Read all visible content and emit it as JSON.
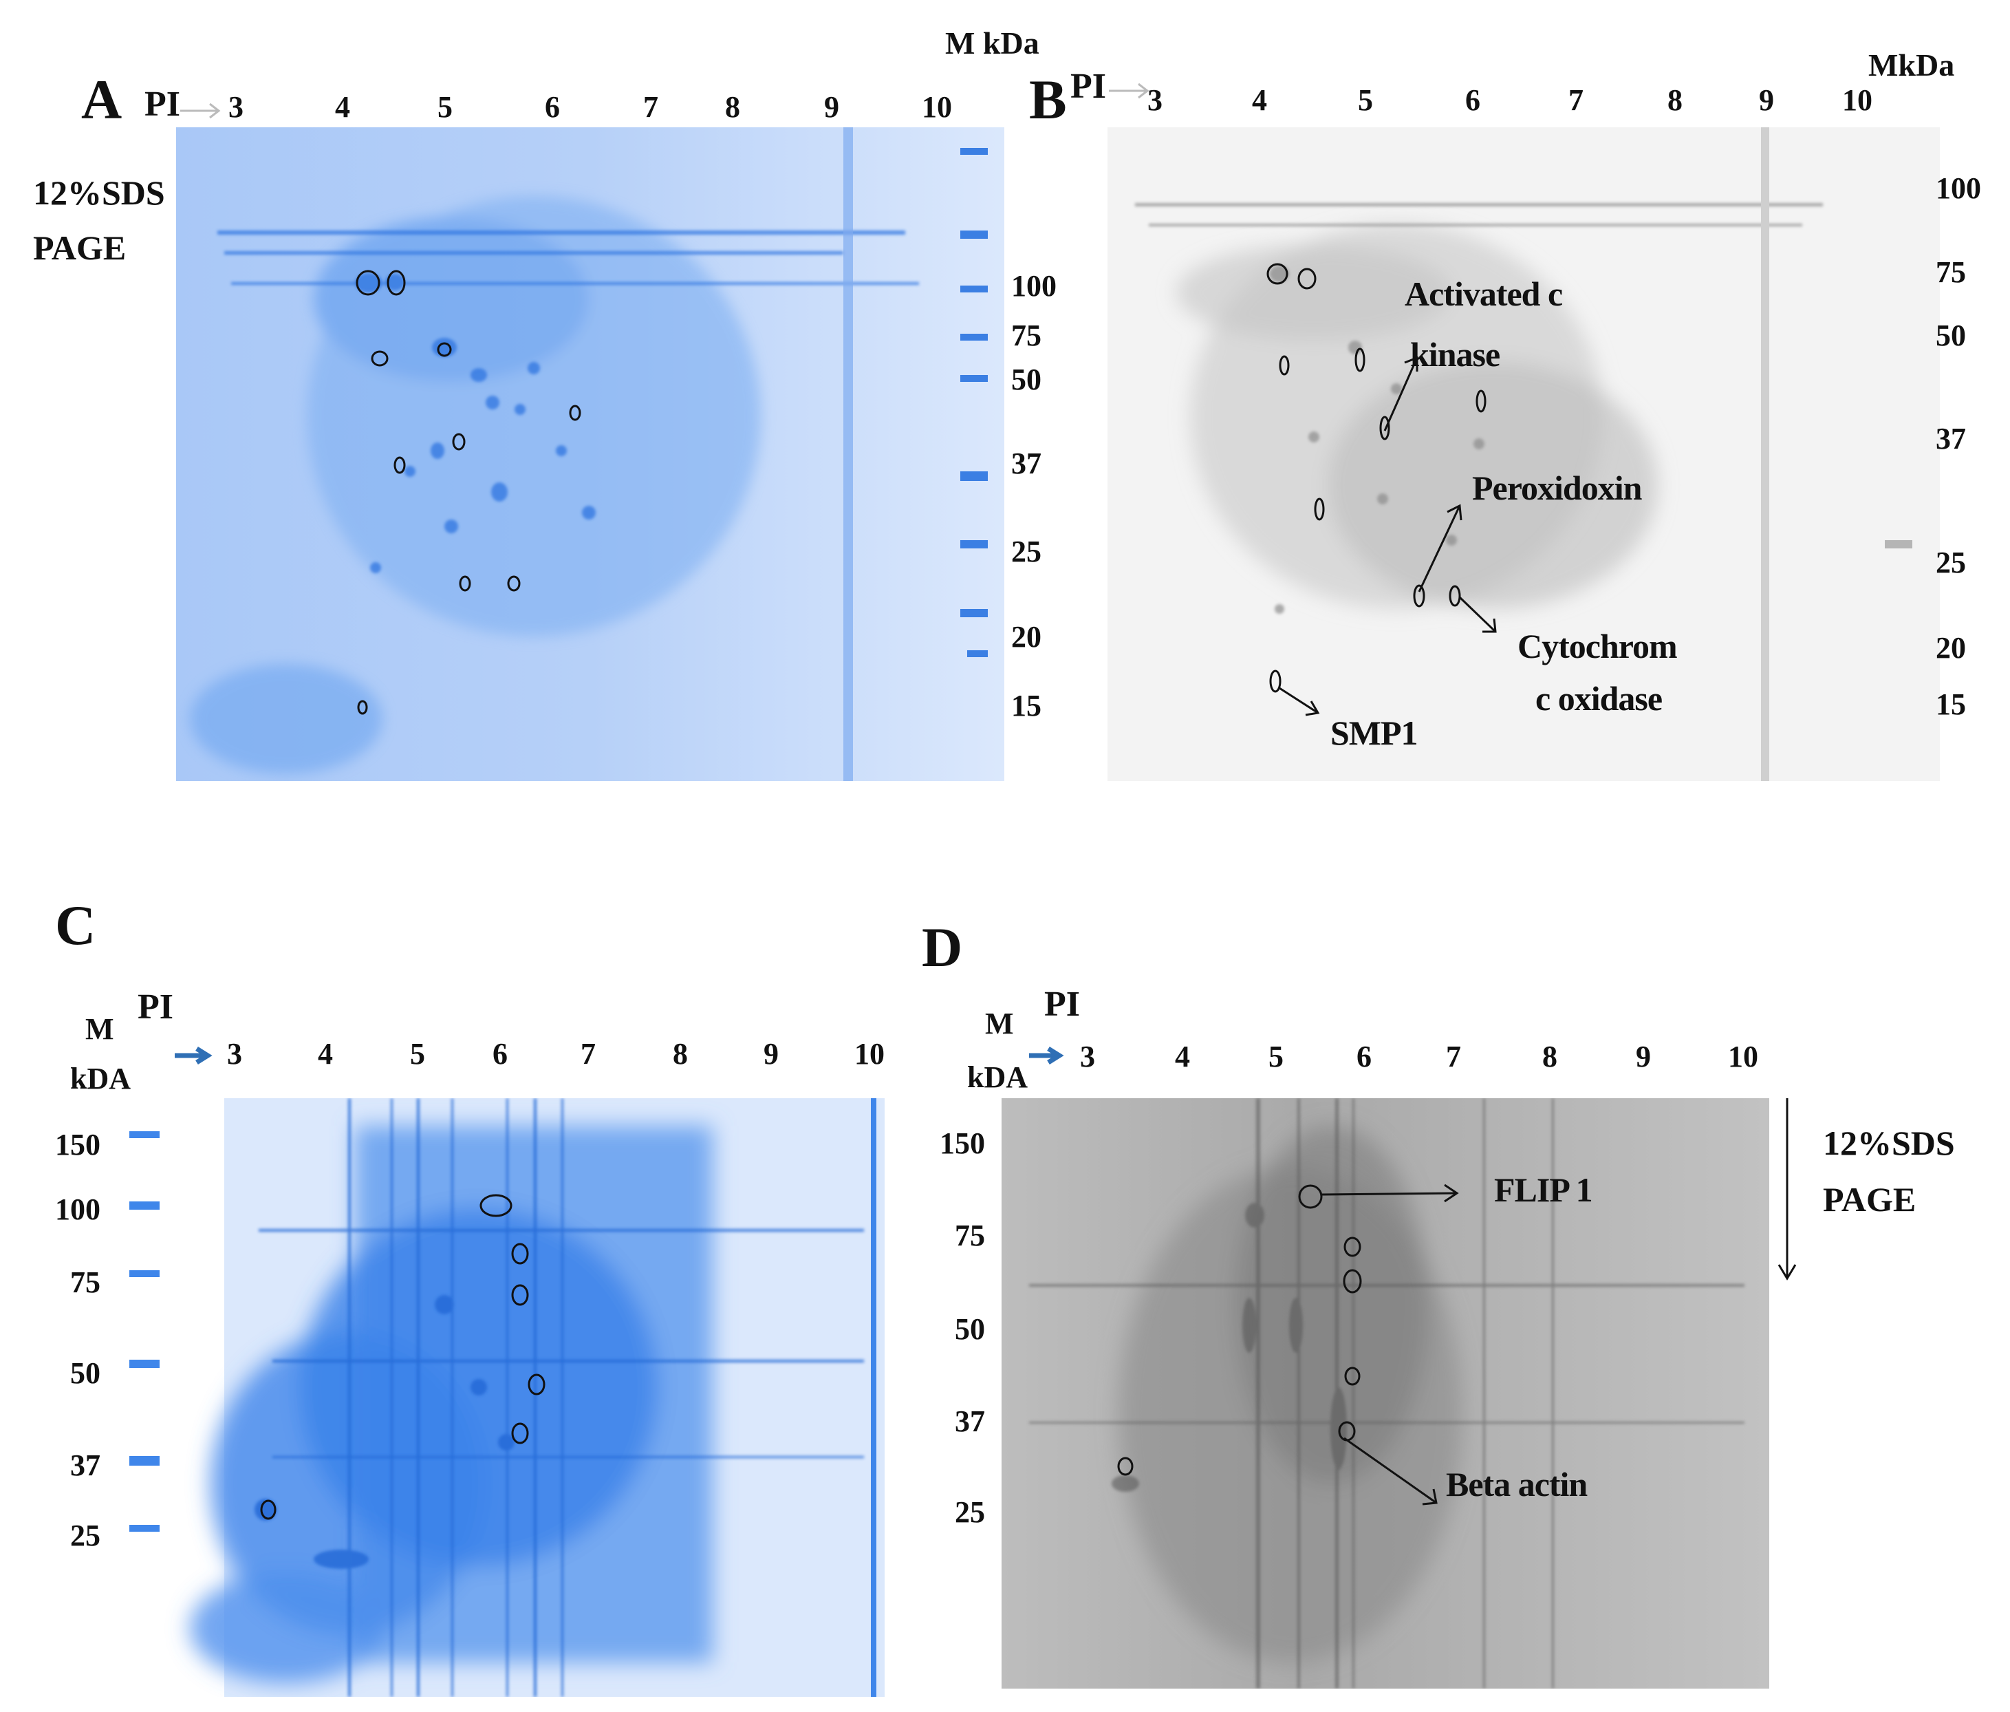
{
  "figure": {
    "panels": {
      "A": {
        "letter": "A",
        "pi_label": "PI",
        "pi_ticks": [
          "3",
          "4",
          "5",
          "6",
          "7",
          "8",
          "9",
          "10"
        ],
        "mw_unit": "M kDa",
        "mw_ticks": [
          "100",
          "75",
          "50",
          "37",
          "25",
          "20",
          "15"
        ],
        "side_note_line1": "12%SDS",
        "side_note_line2": "PAGE",
        "stain": "coomassie-blue"
      },
      "B": {
        "letter": "B",
        "pi_label": "PI",
        "pi_ticks": [
          "3",
          "4",
          "5",
          "6",
          "7",
          "8",
          "9",
          "10"
        ],
        "mw_unit": "MkDa",
        "mw_ticks": [
          "100",
          "75",
          "50",
          "37",
          "25",
          "20",
          "15"
        ],
        "annotations": {
          "kinase_line1": "Activated c",
          "kinase_line2": "kinase",
          "peroxidoxin": "Peroxidoxin",
          "cytochrom_line1": "Cytochrom",
          "cytochrom_line2": "c oxidase",
          "smp1": "SMP1"
        },
        "stain": "grayscale-blot"
      },
      "C": {
        "letter": "C",
        "pi_label": "PI",
        "mw_label_line1": "M",
        "mw_label_line2": "kDA",
        "pi_ticks": [
          "3",
          "4",
          "5",
          "6",
          "7",
          "8",
          "9",
          "10"
        ],
        "mw_ticks": [
          "150",
          "100",
          "75",
          "50",
          "37",
          "25"
        ],
        "stain": "coomassie-blue"
      },
      "D": {
        "letter": "D",
        "pi_label": "PI",
        "mw_label_line1": "M",
        "mw_label_line2": "kDA",
        "pi_ticks": [
          "3",
          "4",
          "5",
          "6",
          "7",
          "8",
          "9",
          "10"
        ],
        "mw_ticks": [
          "150",
          "75",
          "50",
          "37",
          "25"
        ],
        "side_note_line1": "12%SDS",
        "side_note_line2": "PAGE",
        "annotations": {
          "flip1": "FLIP 1",
          "beta_actin": "Beta actin"
        },
        "stain": "grayscale-blot"
      }
    },
    "colors": {
      "coomassie_light": "#cfe1fb",
      "coomassie_mid": "#6fa4f1",
      "coomassie_dark": "#2f74e0",
      "blot_light": "#f4f4f4",
      "blot_dark": "#777777",
      "arrow_blue": "#2f6fb5"
    }
  }
}
